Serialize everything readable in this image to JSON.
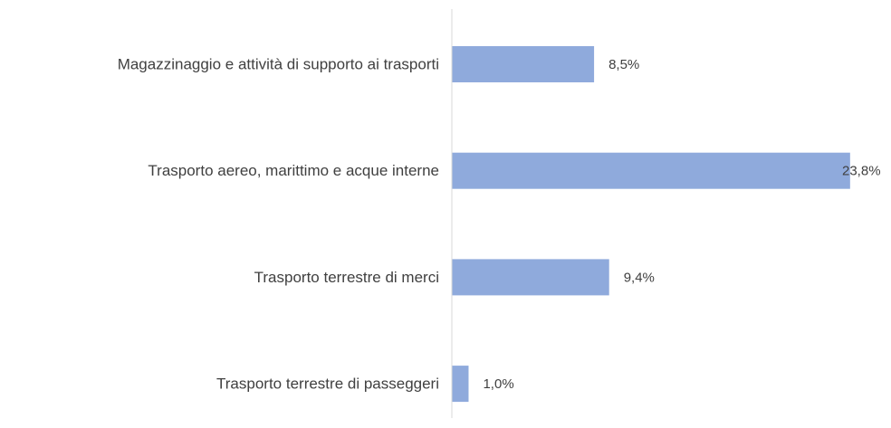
{
  "chart_data": {
    "type": "bar",
    "orientation": "horizontal",
    "categories": [
      "Magazzinaggio e attività di supporto ai trasporti",
      "Trasporto aereo, marittimo e acque interne",
      "Trasporto terrestre di merci",
      "Trasporto terrestre di passeggeri"
    ],
    "values": [
      8.5,
      23.8,
      9.4,
      1.0
    ],
    "value_labels": [
      "8,5%",
      "23,8%",
      "9,4%",
      "1,0%"
    ],
    "color": "#8faadc",
    "xlim": [
      0,
      25
    ]
  }
}
